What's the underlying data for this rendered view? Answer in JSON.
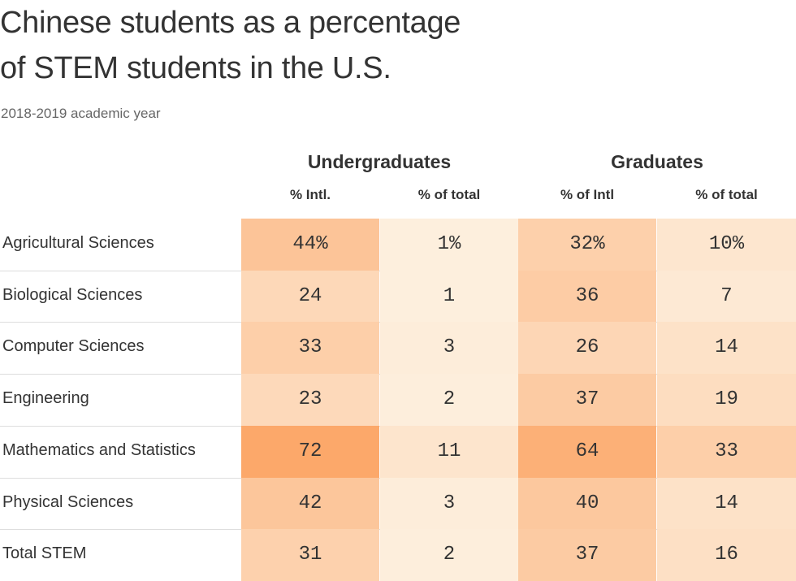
{
  "title_line1": "Chinese students as a percentage",
  "title_line2": "of STEM students in the U.S.",
  "subtitle": "2018-2019 academic year",
  "colors": {
    "low": "#fdf0df",
    "high": "#fca86a",
    "text": "#333333",
    "separator": "#dddddd"
  },
  "chart_data": {
    "type": "table",
    "title": "Chinese students as a percentage of STEM students in the U.S.",
    "subtitle": "2018-2019 academic year",
    "groups": [
      {
        "name": "Undergraduates",
        "columns": [
          "% Intl.",
          "% of total"
        ]
      },
      {
        "name": "Graduates",
        "columns": [
          "% of Intl",
          "% of total"
        ]
      }
    ],
    "rows": [
      {
        "label": "Agricultural Sciences",
        "values": [
          44,
          1,
          32,
          10
        ],
        "display": [
          "44%",
          "1%",
          "32%",
          "10%"
        ]
      },
      {
        "label": "Biological Sciences",
        "values": [
          24,
          1,
          36,
          7
        ],
        "display": [
          "24",
          "1",
          "36",
          "7"
        ]
      },
      {
        "label": "Computer Sciences",
        "values": [
          33,
          3,
          26,
          14
        ],
        "display": [
          "33",
          "3",
          "26",
          "14"
        ]
      },
      {
        "label": "Engineering",
        "values": [
          23,
          2,
          37,
          19
        ],
        "display": [
          "23",
          "2",
          "37",
          "19"
        ]
      },
      {
        "label": "Mathematics and Statistics",
        "values": [
          72,
          11,
          64,
          33
        ],
        "display": [
          "72",
          "11",
          "64",
          "33"
        ]
      },
      {
        "label": "Physical Sciences",
        "values": [
          42,
          3,
          40,
          14
        ],
        "display": [
          "42",
          "3",
          "40",
          "14"
        ]
      },
      {
        "label": "Total STEM",
        "values": [
          31,
          2,
          37,
          16
        ],
        "display": [
          "31",
          "2",
          "37",
          "16"
        ]
      }
    ]
  }
}
